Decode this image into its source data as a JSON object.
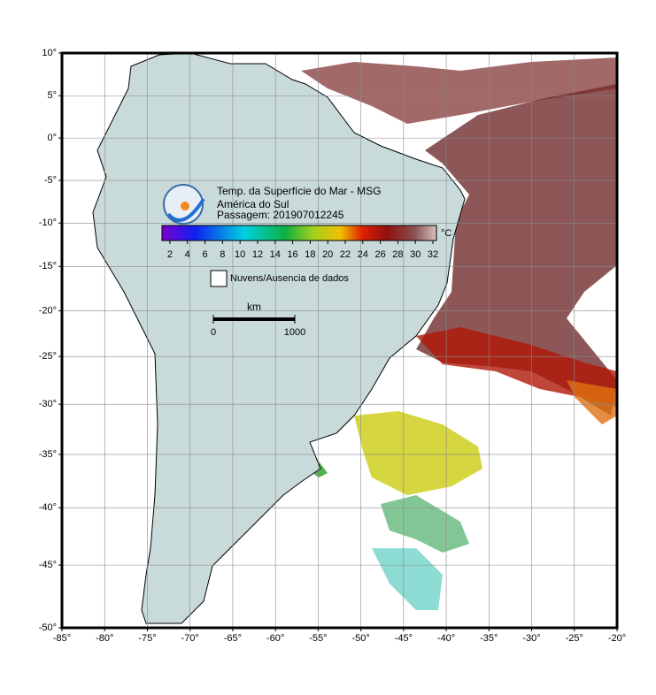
{
  "map": {
    "title_lines": [
      "Temp. da Superfície do Mar - MSG",
      "América do Sul",
      "Passagem: 201907012245"
    ],
    "projection": "mercator",
    "xlim": [
      -85,
      -20
    ],
    "ylim": [
      -50,
      10
    ],
    "grid": true,
    "xticks": [
      {
        "value": -85,
        "label": "-85°"
      },
      {
        "value": -80,
        "label": "-80°"
      },
      {
        "value": -75,
        "label": "-75°"
      },
      {
        "value": -70,
        "label": "-70°"
      },
      {
        "value": -65,
        "label": "-65°"
      },
      {
        "value": -60,
        "label": "-60°"
      },
      {
        "value": -55,
        "label": "-55°"
      },
      {
        "value": -50,
        "label": "-50°"
      },
      {
        "value": -45,
        "label": "-45°"
      },
      {
        "value": -40,
        "label": "-40°"
      },
      {
        "value": -35,
        "label": "-35°"
      },
      {
        "value": -30,
        "label": "-30°"
      },
      {
        "value": -25,
        "label": "-25°"
      },
      {
        "value": -20,
        "label": "-20°"
      }
    ],
    "yticks": [
      {
        "value": 10,
        "label": "10°"
      },
      {
        "value": 5,
        "label": "5°"
      },
      {
        "value": 0,
        "label": "0°"
      },
      {
        "value": -5,
        "label": "-5°"
      },
      {
        "value": -10,
        "label": "-10°"
      },
      {
        "value": -15,
        "label": "-15°"
      },
      {
        "value": -20,
        "label": "-20°"
      },
      {
        "value": -25,
        "label": "-25°"
      },
      {
        "value": -30,
        "label": "-30°"
      },
      {
        "value": -35,
        "label": "-35°"
      },
      {
        "value": -40,
        "label": "-40°"
      },
      {
        "value": -45,
        "label": "-45°"
      },
      {
        "value": -50,
        "label": "-50°"
      }
    ],
    "colorbar": {
      "unit": "°C",
      "lim": [
        1.1,
        32.4
      ],
      "ticks": [
        2,
        4,
        6,
        8,
        10,
        12,
        14,
        16,
        18,
        20,
        22,
        24,
        26,
        28,
        30,
        32
      ]
    },
    "legend": "Nuvens/Ausencia de dados",
    "scale_bar": {
      "unit": "km",
      "ticks": [
        0,
        1000
      ]
    }
  }
}
